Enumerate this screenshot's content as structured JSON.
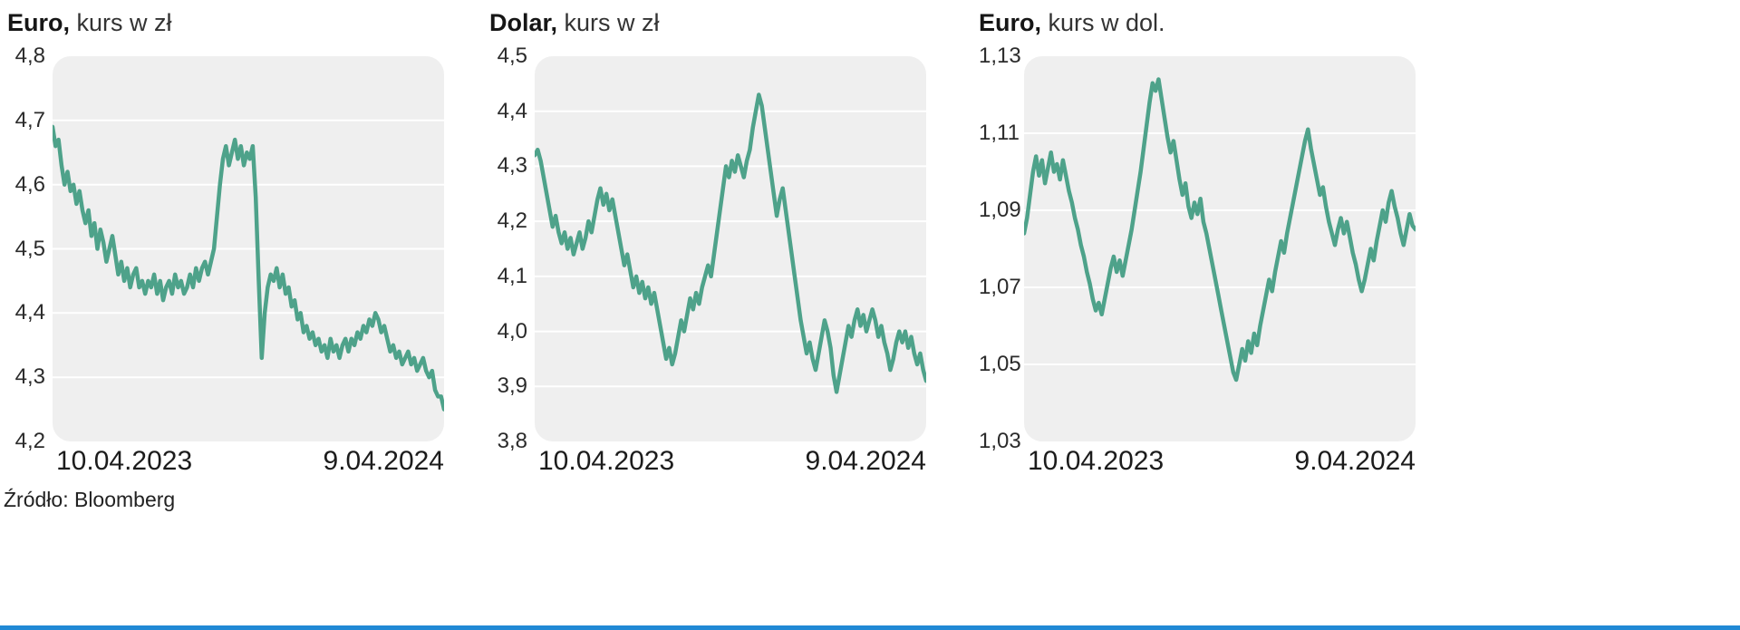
{
  "source_label": "Źródło: Bloomberg",
  "colors": {
    "line": "#4EA28A",
    "panel_bg": "#EFEFEF",
    "gridline": "#FFFFFF",
    "footer_rule": "#2089D5"
  },
  "chart_data": [
    {
      "type": "line",
      "title_bold": "Euro,",
      "title_rest": " kurs w zł",
      "x_start_label": "10.04.2023",
      "x_end_label": "9.04.2024",
      "ylim": [
        4.2,
        4.8
      ],
      "yticks": [
        "4,8",
        "4,7",
        "4,6",
        "4,5",
        "4,4",
        "4,3",
        "4,2"
      ],
      "ytick_values": [
        4.8,
        4.7,
        4.6,
        4.5,
        4.4,
        4.3,
        4.2
      ],
      "values": [
        4.69,
        4.66,
        4.67,
        4.63,
        4.6,
        4.62,
        4.59,
        4.6,
        4.57,
        4.59,
        4.56,
        4.54,
        4.56,
        4.52,
        4.54,
        4.5,
        4.53,
        4.51,
        4.48,
        4.5,
        4.52,
        4.49,
        4.46,
        4.48,
        4.45,
        4.47,
        4.44,
        4.46,
        4.47,
        4.44,
        4.45,
        4.43,
        4.45,
        4.44,
        4.46,
        4.43,
        4.45,
        4.42,
        4.44,
        4.45,
        4.43,
        4.46,
        4.44,
        4.45,
        4.43,
        4.44,
        4.46,
        4.44,
        4.47,
        4.45,
        4.47,
        4.48,
        4.46,
        4.48,
        4.5,
        4.55,
        4.6,
        4.64,
        4.66,
        4.63,
        4.65,
        4.67,
        4.64,
        4.66,
        4.63,
        4.65,
        4.64,
        4.66,
        4.58,
        4.45,
        4.33,
        4.4,
        4.44,
        4.46,
        4.45,
        4.47,
        4.44,
        4.46,
        4.43,
        4.44,
        4.41,
        4.42,
        4.39,
        4.4,
        4.37,
        4.38,
        4.36,
        4.37,
        4.35,
        4.36,
        4.34,
        4.35,
        4.33,
        4.36,
        4.34,
        4.35,
        4.33,
        4.35,
        4.36,
        4.34,
        4.36,
        4.35,
        4.37,
        4.36,
        4.38,
        4.37,
        4.39,
        4.38,
        4.4,
        4.39,
        4.37,
        4.38,
        4.36,
        4.34,
        4.35,
        4.33,
        4.34,
        4.32,
        4.33,
        4.34,
        4.32,
        4.33,
        4.31,
        4.32,
        4.33,
        4.31,
        4.3,
        4.31,
        4.28,
        4.27,
        4.27,
        4.25
      ]
    },
    {
      "type": "line",
      "title_bold": "Dolar,",
      "title_rest": " kurs w zł",
      "x_start_label": "10.04.2023",
      "x_end_label": "9.04.2024",
      "ylim": [
        3.8,
        4.5
      ],
      "yticks": [
        "4,5",
        "4,4",
        "4,3",
        "4,2",
        "4,1",
        "4,0",
        "3,9",
        "3,8"
      ],
      "ytick_values": [
        4.5,
        4.4,
        4.3,
        4.2,
        4.1,
        4.0,
        3.9,
        3.8
      ],
      "values": [
        4.32,
        4.33,
        4.31,
        4.28,
        4.25,
        4.22,
        4.19,
        4.21,
        4.18,
        4.16,
        4.18,
        4.15,
        4.17,
        4.14,
        4.16,
        4.18,
        4.15,
        4.17,
        4.2,
        4.18,
        4.21,
        4.24,
        4.26,
        4.23,
        4.25,
        4.22,
        4.24,
        4.21,
        4.18,
        4.15,
        4.12,
        4.14,
        4.11,
        4.08,
        4.1,
        4.07,
        4.09,
        4.06,
        4.08,
        4.05,
        4.07,
        4.04,
        4.01,
        3.98,
        3.95,
        3.97,
        3.94,
        3.96,
        3.99,
        4.02,
        4.0,
        4.03,
        4.06,
        4.04,
        4.07,
        4.05,
        4.08,
        4.1,
        4.12,
        4.1,
        4.14,
        4.18,
        4.22,
        4.26,
        4.3,
        4.28,
        4.31,
        4.29,
        4.32,
        4.3,
        4.28,
        4.31,
        4.33,
        4.37,
        4.4,
        4.43,
        4.41,
        4.37,
        4.33,
        4.29,
        4.25,
        4.21,
        4.24,
        4.26,
        4.22,
        4.18,
        4.14,
        4.1,
        4.06,
        4.02,
        3.99,
        3.96,
        3.98,
        3.95,
        3.93,
        3.96,
        3.99,
        4.02,
        4.0,
        3.97,
        3.92,
        3.89,
        3.92,
        3.95,
        3.98,
        4.01,
        3.99,
        4.02,
        4.04,
        4.01,
        4.03,
        4.0,
        4.02,
        4.04,
        4.02,
        3.99,
        4.01,
        3.98,
        3.96,
        3.93,
        3.95,
        3.98,
        4.0,
        3.98,
        4.0,
        3.97,
        3.99,
        3.96,
        3.94,
        3.96,
        3.93,
        3.91
      ]
    },
    {
      "type": "line",
      "title_bold": "Euro,",
      "title_rest": " kurs w dol.",
      "x_start_label": "10.04.2023",
      "x_end_label": "9.04.2024",
      "ylim": [
        1.03,
        1.13
      ],
      "yticks": [
        "1,13",
        "1,11",
        "1,09",
        "1,07",
        "1,05",
        "1,03"
      ],
      "ytick_values": [
        1.13,
        1.11,
        1.09,
        1.07,
        1.05,
        1.03
      ],
      "values": [
        1.084,
        1.088,
        1.094,
        1.1,
        1.104,
        1.099,
        1.103,
        1.097,
        1.101,
        1.105,
        1.1,
        1.102,
        1.098,
        1.103,
        1.099,
        1.095,
        1.092,
        1.088,
        1.085,
        1.081,
        1.078,
        1.074,
        1.071,
        1.067,
        1.064,
        1.066,
        1.063,
        1.067,
        1.071,
        1.075,
        1.078,
        1.074,
        1.077,
        1.073,
        1.077,
        1.081,
        1.085,
        1.09,
        1.095,
        1.1,
        1.106,
        1.112,
        1.118,
        1.123,
        1.121,
        1.124,
        1.119,
        1.114,
        1.109,
        1.105,
        1.108,
        1.103,
        1.098,
        1.094,
        1.097,
        1.091,
        1.088,
        1.092,
        1.089,
        1.093,
        1.087,
        1.084,
        1.08,
        1.076,
        1.072,
        1.068,
        1.064,
        1.06,
        1.056,
        1.052,
        1.048,
        1.046,
        1.05,
        1.054,
        1.051,
        1.056,
        1.053,
        1.058,
        1.055,
        1.06,
        1.064,
        1.068,
        1.072,
        1.069,
        1.074,
        1.078,
        1.082,
        1.079,
        1.084,
        1.088,
        1.092,
        1.096,
        1.1,
        1.104,
        1.108,
        1.111,
        1.106,
        1.102,
        1.098,
        1.094,
        1.096,
        1.091,
        1.087,
        1.084,
        1.081,
        1.085,
        1.088,
        1.084,
        1.087,
        1.083,
        1.079,
        1.076,
        1.072,
        1.069,
        1.072,
        1.076,
        1.08,
        1.077,
        1.082,
        1.086,
        1.09,
        1.087,
        1.092,
        1.095,
        1.091,
        1.088,
        1.084,
        1.081,
        1.085,
        1.089,
        1.086,
        1.085
      ]
    }
  ]
}
